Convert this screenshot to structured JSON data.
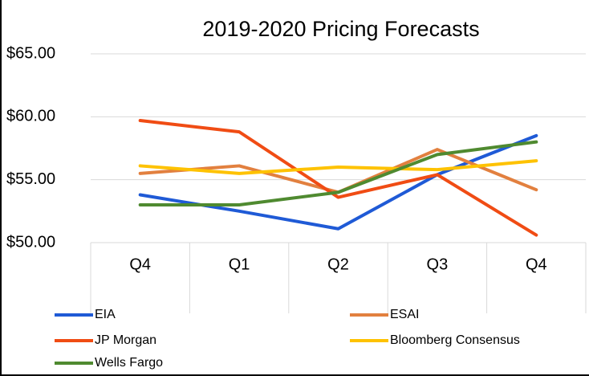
{
  "chart_data": {
    "type": "line",
    "title": "2019-2020 Pricing Forecasts",
    "categories": [
      "Q4",
      "Q1",
      "Q2",
      "Q3",
      "Q4"
    ],
    "series": [
      {
        "name": "EIA",
        "color": "#1f5ad6",
        "values": [
          53.8,
          52.5,
          51.1,
          55.4,
          58.5
        ]
      },
      {
        "name": "ESAI",
        "color": "#e2803f",
        "values": [
          55.5,
          56.1,
          54.0,
          57.4,
          54.2
        ]
      },
      {
        "name": "JP Morgan",
        "color": "#f04c14",
        "values": [
          59.7,
          58.8,
          53.6,
          55.4,
          50.6
        ]
      },
      {
        "name": "Bloomberg Consensus",
        "color": "#fec200",
        "values": [
          56.1,
          55.5,
          56.0,
          55.8,
          56.5
        ]
      },
      {
        "name": "Wells Fargo",
        "color": "#4f8a30",
        "values": [
          53.0,
          53.0,
          54.0,
          57.0,
          58.0
        ]
      }
    ],
    "ylim": [
      50,
      65
    ],
    "yticks": [
      {
        "value": 50,
        "label": "$50.00"
      },
      {
        "value": 55,
        "label": "$55.00"
      },
      {
        "value": 60,
        "label": "$60.00"
      },
      {
        "value": 65,
        "label": "$65.00"
      }
    ],
    "grid": true
  }
}
